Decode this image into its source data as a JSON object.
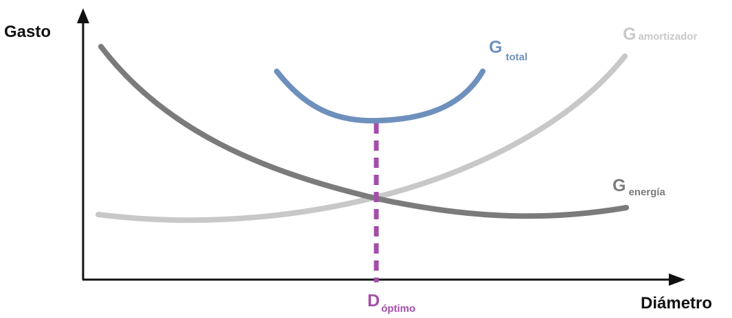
{
  "axes": {
    "y_label": "Gasto",
    "x_label": "Diámetro",
    "axis_color": "#111111"
  },
  "curves": {
    "total": {
      "main": "G",
      "sub": "total",
      "color": "#6e90bd"
    },
    "amortizador": {
      "main": "G",
      "sub": "amortizador",
      "color": "#c8c8c8"
    },
    "energia": {
      "main": "G",
      "sub": "energía",
      "color": "#7b7b7b"
    }
  },
  "optimum": {
    "main": "D",
    "sub": "óptimo",
    "color": "#a34ea8"
  }
}
